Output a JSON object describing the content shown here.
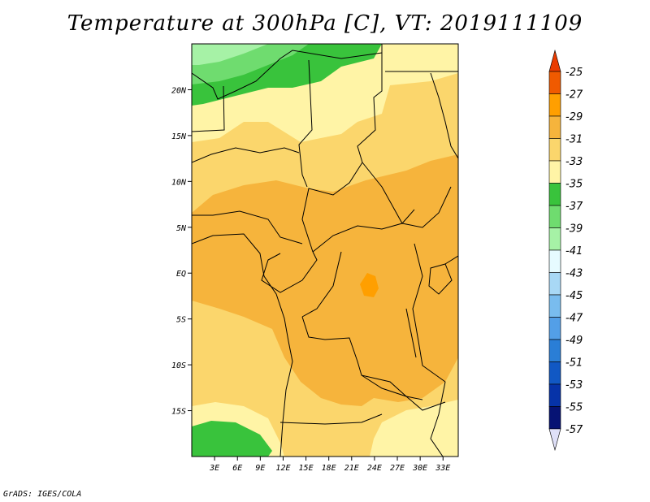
{
  "title": "Temperature at 300hPa [C], VT: 2019111109",
  "credit": "GrADS: IGES/COLA",
  "lat_labels": [
    {
      "text": "20N",
      "lat": 20
    },
    {
      "text": "15N",
      "lat": 15
    },
    {
      "text": "10N",
      "lat": 10
    },
    {
      "text": "5N",
      "lat": 5
    },
    {
      "text": "EQ",
      "lat": 0
    },
    {
      "text": "5S",
      "lat": -5
    },
    {
      "text": "10S",
      "lat": -10
    },
    {
      "text": "15S",
      "lat": -15
    }
  ],
  "lon_labels": [
    {
      "text": "3E",
      "lon": 3
    },
    {
      "text": "6E",
      "lon": 6
    },
    {
      "text": "9E",
      "lon": 9
    },
    {
      "text": "12E",
      "lon": 12
    },
    {
      "text": "15E",
      "lon": 15
    },
    {
      "text": "18E",
      "lon": 18
    },
    {
      "text": "21E",
      "lon": 21
    },
    {
      "text": "24E",
      "lon": 24
    },
    {
      "text": "27E",
      "lon": 27
    },
    {
      "text": "30E",
      "lon": 30
    },
    {
      "text": "33E",
      "lon": 33
    }
  ],
  "map_extent": {
    "lon_min": 0,
    "lon_max": 35,
    "lat_min": -20,
    "lat_max": 25
  },
  "colorbar": {
    "labels": [
      "-25",
      "-27",
      "-29",
      "-31",
      "-33",
      "-35",
      "-37",
      "-39",
      "-41",
      "-43",
      "-45",
      "-47",
      "-49",
      "-51",
      "-53",
      "-55",
      "-57"
    ],
    "colors": [
      "#a50000",
      "#f05a00",
      "#ff9f00",
      "#f6b43c",
      "#fbd66c",
      "#fff4a6",
      "#39c33c",
      "#6fdc6f",
      "#a6f2a6",
      "#e6fbff",
      "#a8d8f5",
      "#79bcee",
      "#539fe7",
      "#2a7ed6",
      "#1158c4",
      "#0633a8",
      "#061374"
    ],
    "top_color": "#ea3c00",
    "bottom_color": "#dfe0f8"
  }
}
